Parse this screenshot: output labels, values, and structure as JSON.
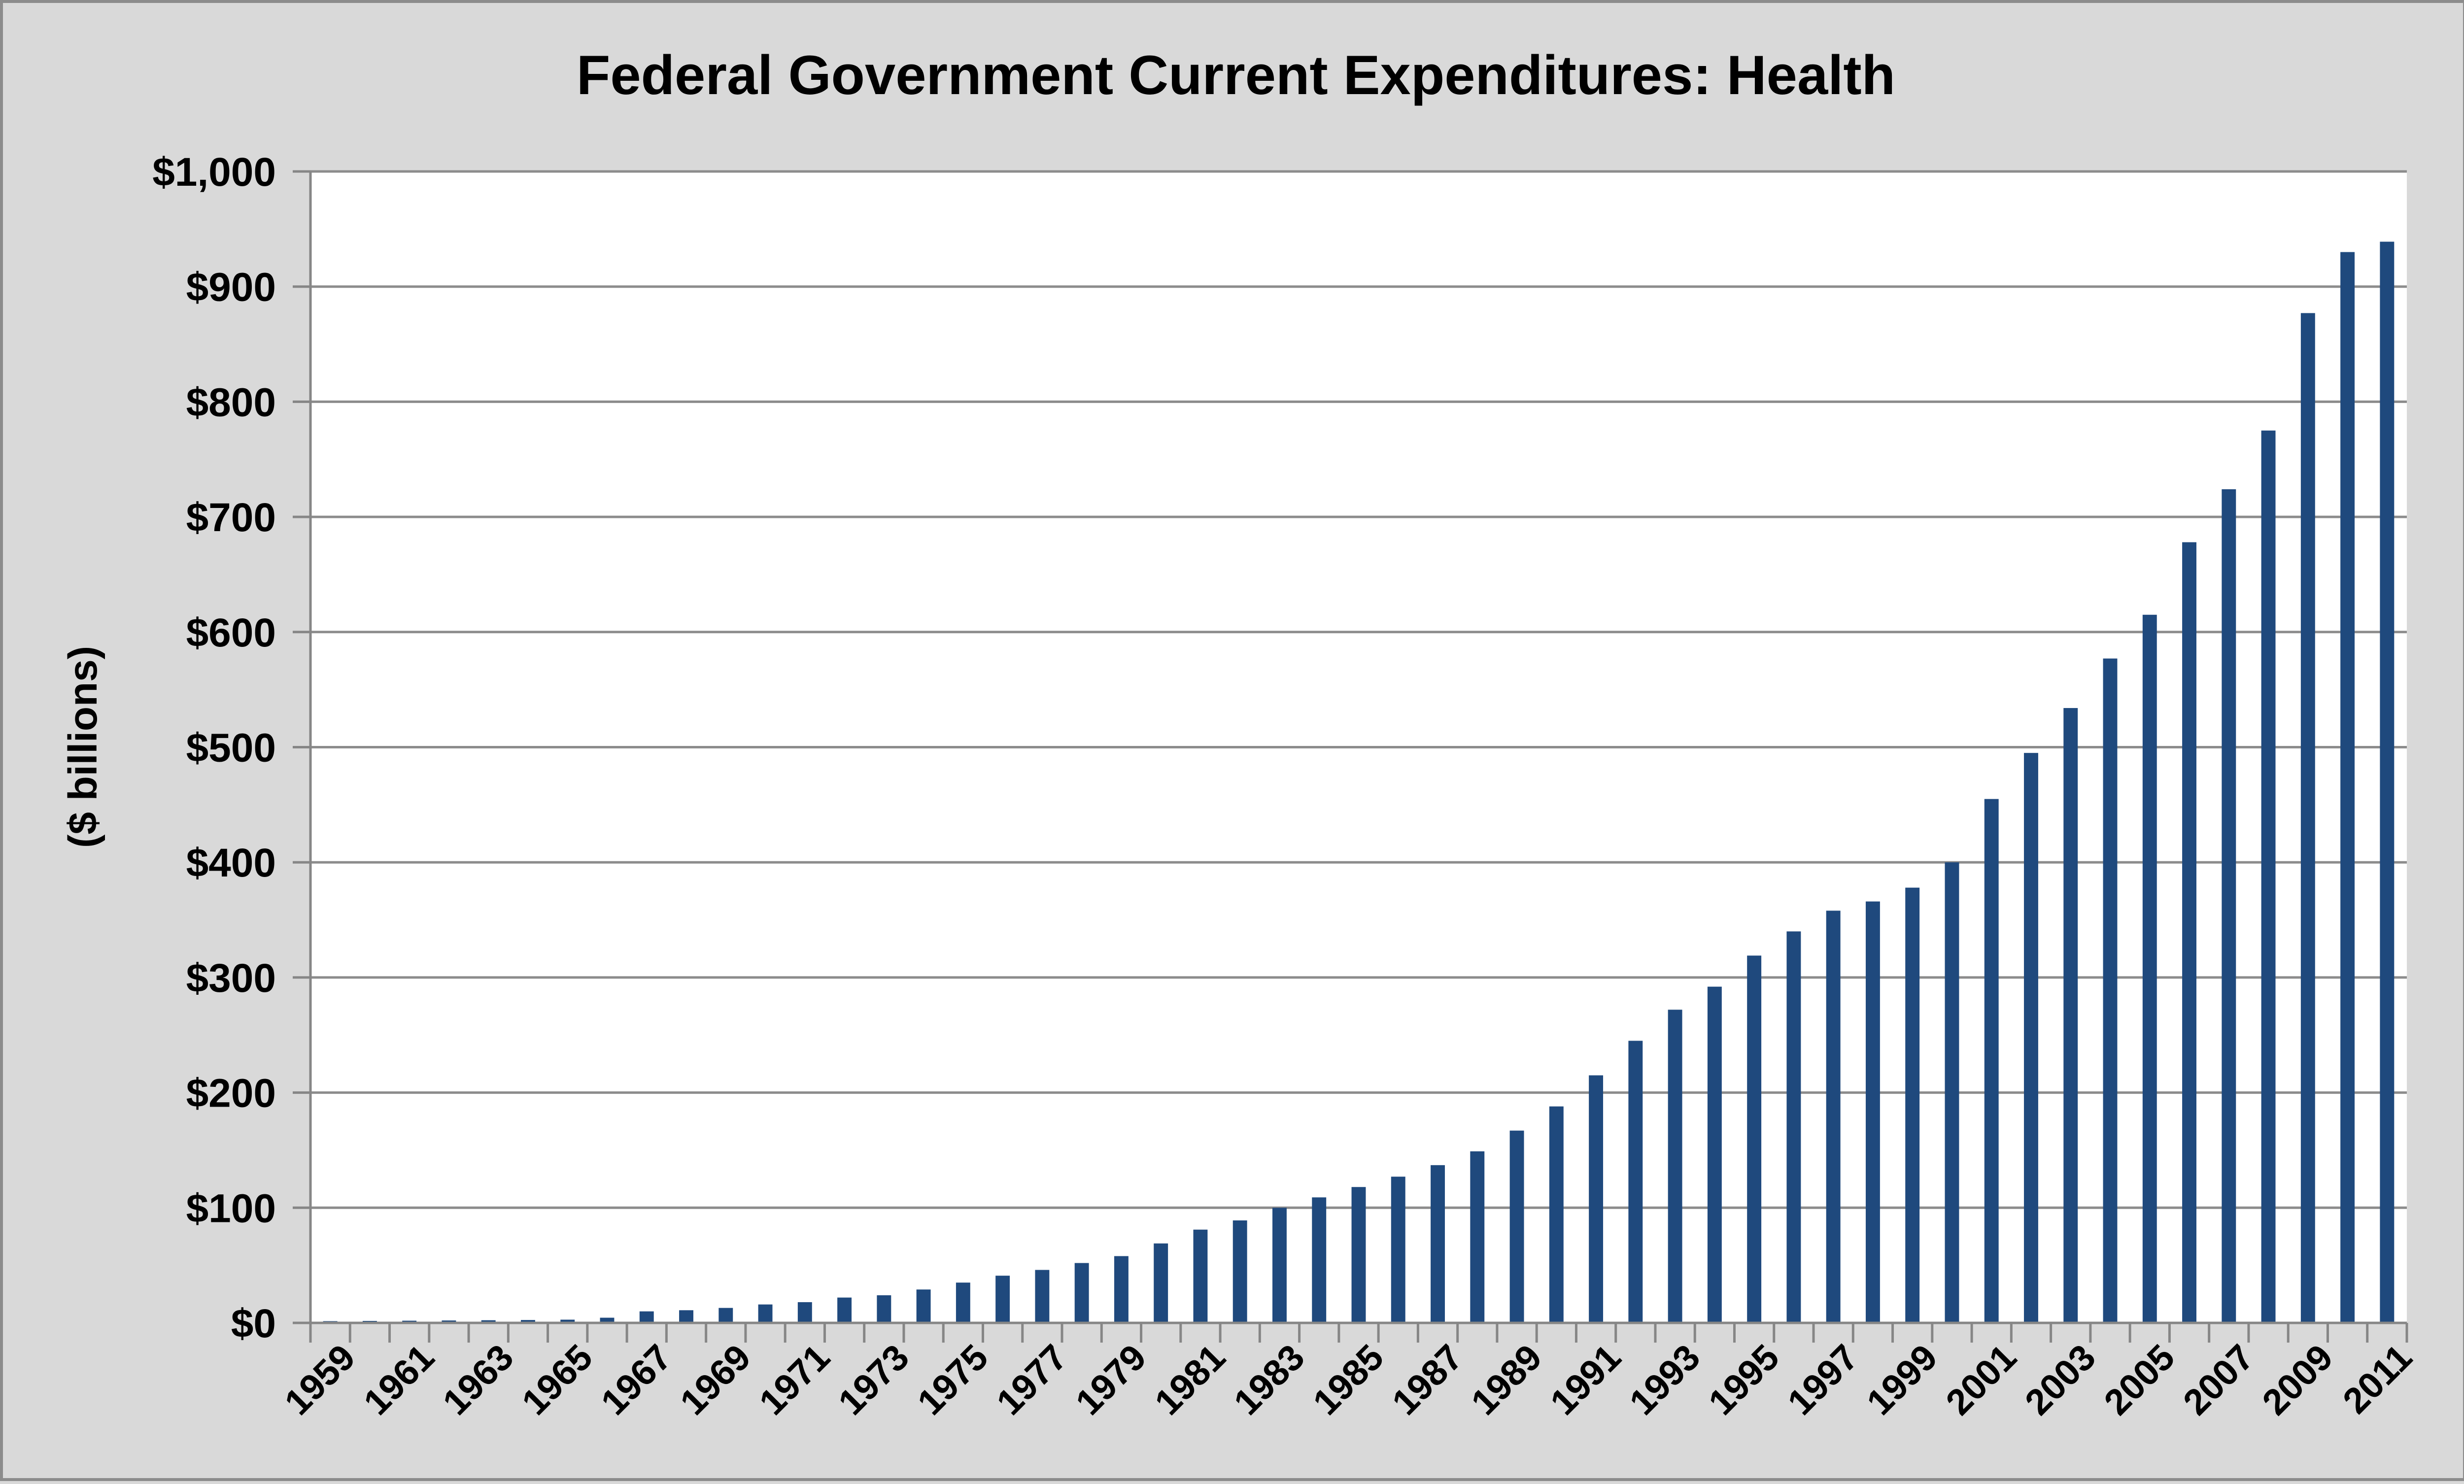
{
  "chart_data": {
    "type": "bar",
    "title": "Federal Government Current Expenditures: Health",
    "xlabel": "",
    "ylabel": "($ billions)",
    "ylim": [
      0,
      1000
    ],
    "y_tick_values": [
      0,
      100,
      200,
      300,
      400,
      500,
      600,
      700,
      800,
      900,
      1000
    ],
    "y_tick_labels": [
      "$0",
      "$100",
      "$200",
      "$300",
      "$400",
      "$500",
      "$600",
      "$700",
      "$800",
      "$900",
      "$1,000"
    ],
    "categories": [
      "1959",
      "1960",
      "1961",
      "1962",
      "1963",
      "1964",
      "1965",
      "1966",
      "1967",
      "1968",
      "1969",
      "1970",
      "1971",
      "1972",
      "1973",
      "1974",
      "1975",
      "1976",
      "1977",
      "1978",
      "1979",
      "1980",
      "1981",
      "1982",
      "1983",
      "1984",
      "1985",
      "1986",
      "1987",
      "1988",
      "1989",
      "1990",
      "1991",
      "1992",
      "1993",
      "1994",
      "1995",
      "1996",
      "1997",
      "1998",
      "1999",
      "2000",
      "2001",
      "2002",
      "2003",
      "2004",
      "2005",
      "2006",
      "2007",
      "2008",
      "2009",
      "2010",
      "2011"
    ],
    "x_tick_labels": [
      "1959",
      "1961",
      "1963",
      "1965",
      "1967",
      "1969",
      "1971",
      "1973",
      "1975",
      "1977",
      "1979",
      "1981",
      "1983",
      "1985",
      "1987",
      "1989",
      "1991",
      "1993",
      "1995",
      "1997",
      "1999",
      "2001",
      "2003",
      "2005",
      "2007",
      "2009",
      "2011"
    ],
    "values": [
      1.5,
      1.7,
      1.9,
      2.1,
      2.3,
      2.5,
      2.8,
      4.5,
      10,
      11,
      13,
      16,
      18,
      22,
      24,
      29,
      35,
      41,
      46,
      52,
      58,
      69,
      81,
      89,
      100,
      109,
      118,
      127,
      137,
      149,
      167,
      188,
      215,
      245,
      272,
      292,
      319,
      340,
      358,
      366,
      378,
      400,
      455,
      495,
      534,
      577,
      615,
      678,
      724,
      775,
      877,
      930,
      939
    ],
    "bar_color": "#1f497d",
    "gridlines": true,
    "legend": "none"
  }
}
